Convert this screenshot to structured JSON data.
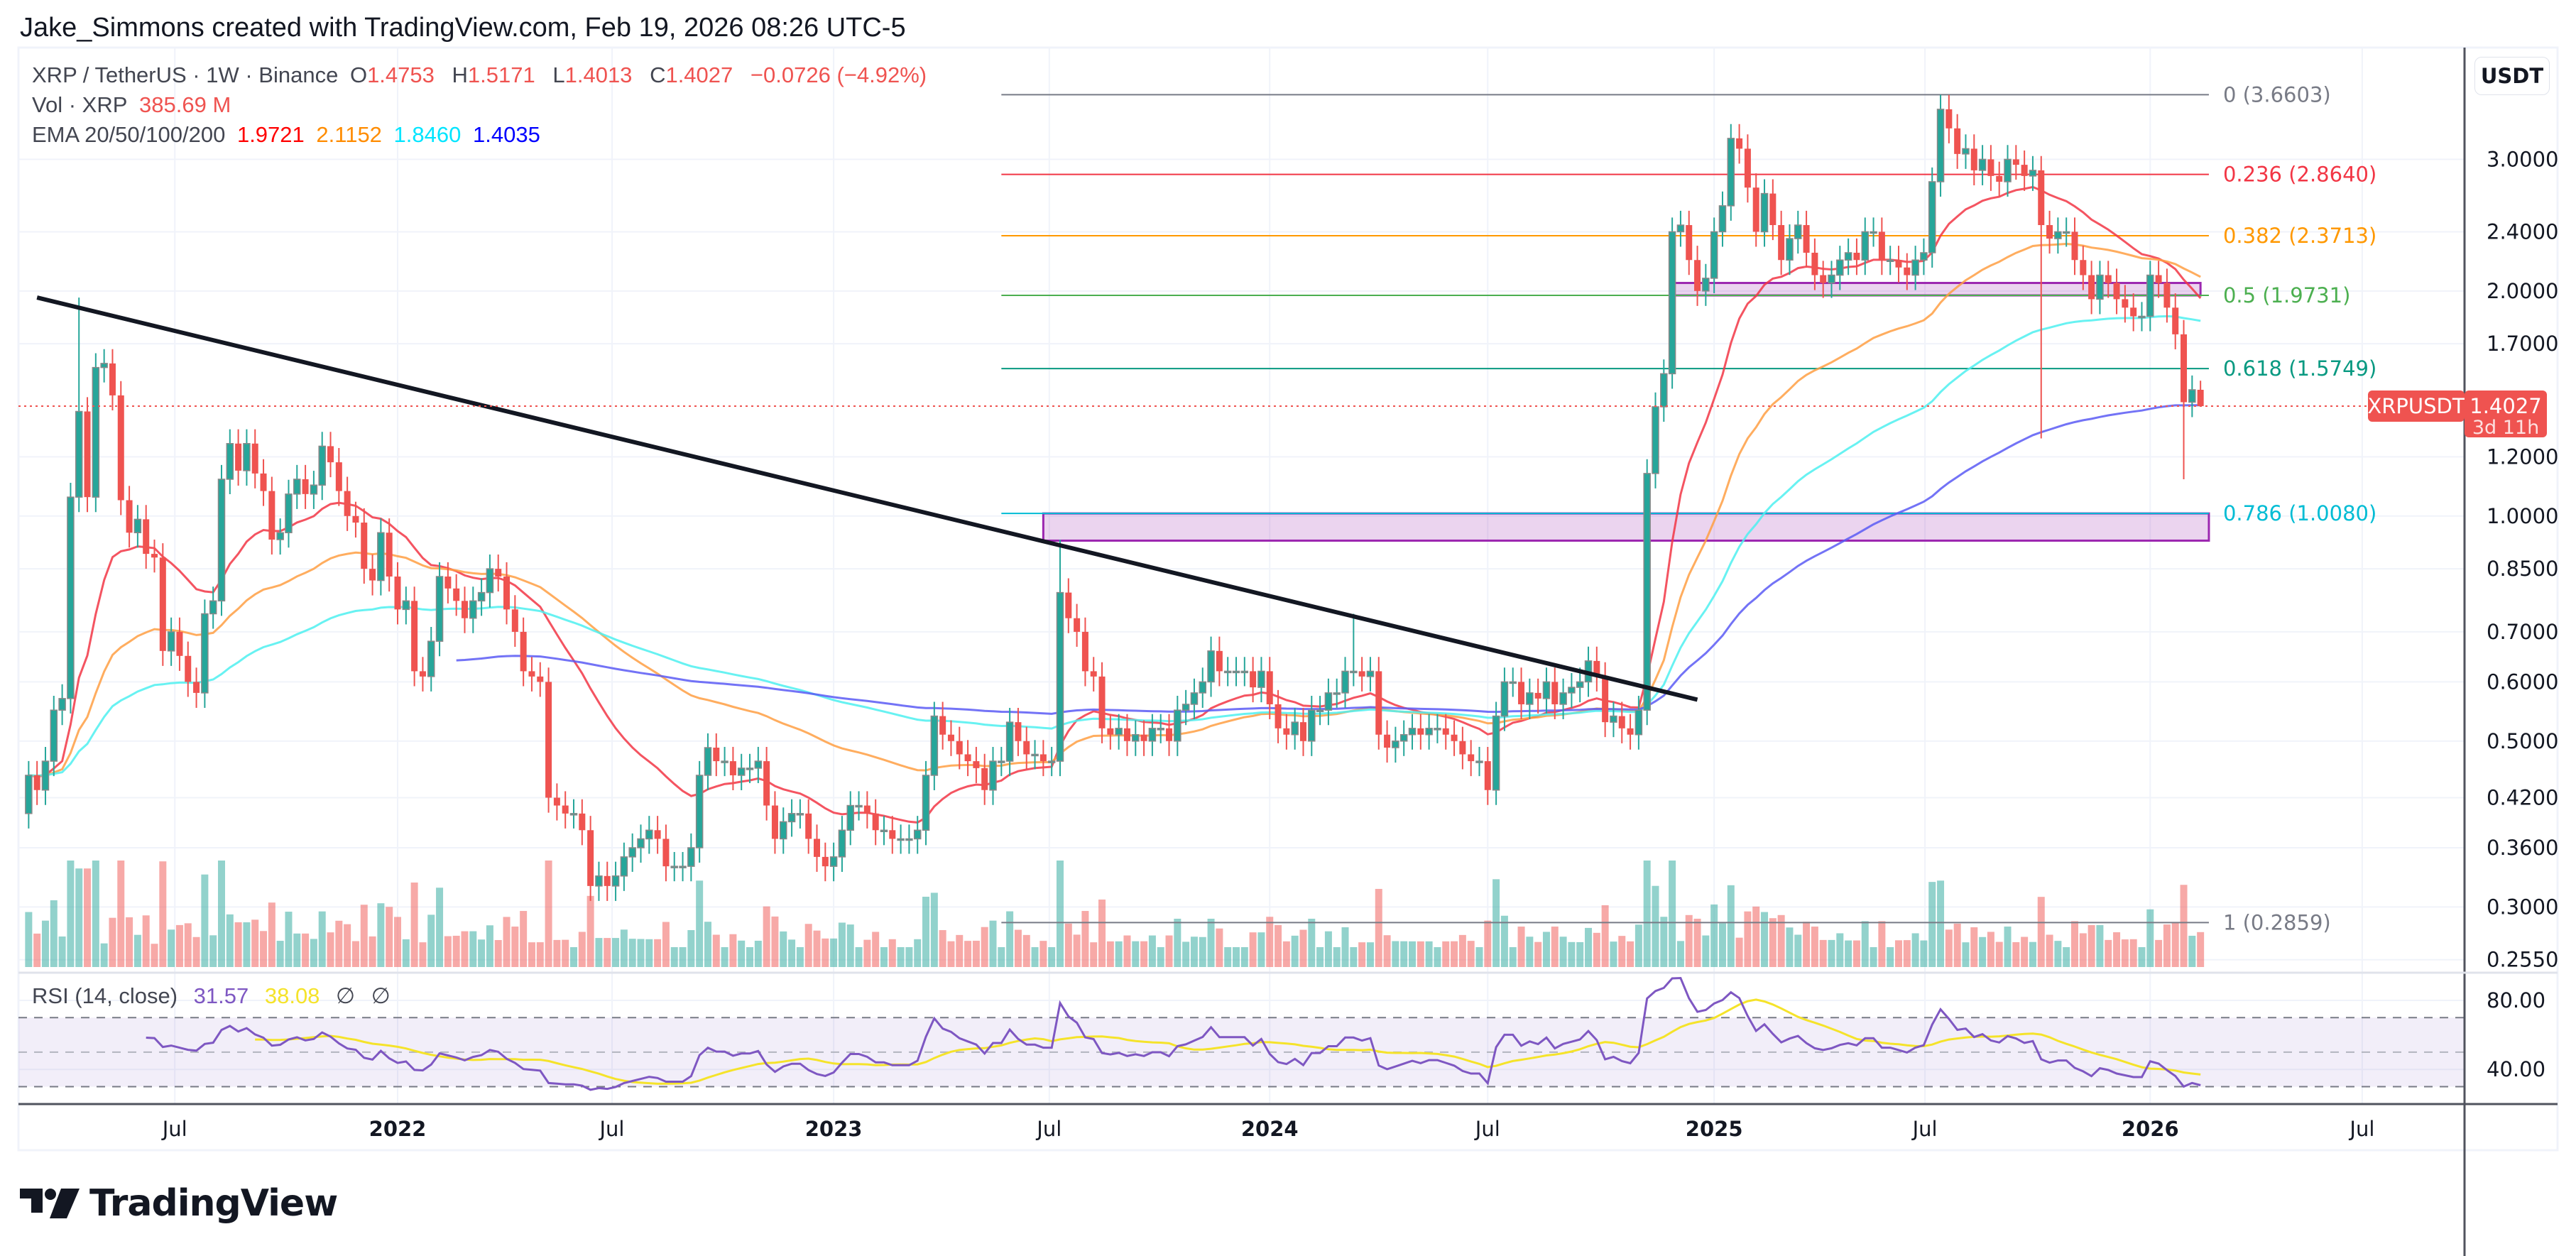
{
  "attribution": "Jake_Simmons created with TradingView.com, Feb 19, 2026 08:26 UTC-5",
  "legend": {
    "symbol": "XRP / TetherUS · 1W · Binance",
    "o_label": "O",
    "o": "1.4753",
    "h_label": "H",
    "h": "1.5171",
    "l_label": "L",
    "l": "1.4013",
    "c_label": "C",
    "c": "1.4027",
    "change": "−0.0726 (−4.92%)",
    "vol_label": "Vol · XRP",
    "vol": "385.69 M",
    "ema_label": "EMA 20/50/100/200",
    "ema20": "1.9721",
    "ema50": "2.1152",
    "ema100": "1.8460",
    "ema200": "1.4035"
  },
  "rsi_legend": {
    "label": "RSI (14, close)",
    "rsi": "31.57",
    "ma": "38.08",
    "na1": "∅",
    "na2": "∅"
  },
  "currency_button": "USDT",
  "price_tag": {
    "symbol": "XRPUSDT",
    "price": "1.4027",
    "countdown": "3d 11h"
  },
  "logo_text": "TradingView",
  "colors": {
    "up": "#26a69a",
    "down": "#ef5350",
    "ema20": "#f23645",
    "ema50": "#ff9f43",
    "ema100": "#4df0f0",
    "ema200": "#5b5bf5",
    "rsi": "#7e57c2",
    "rsi_ma": "#f5e32a",
    "trendline": "#131722",
    "zone": "#9c27b0"
  },
  "chart_data": {
    "type": "candlestick",
    "interval": "1W",
    "y_scale": "log",
    "grid": true,
    "first_week": "2021-03-01",
    "last_candle": {
      "open": 1.4753,
      "high": 1.5171,
      "low": 1.4013,
      "close": 1.4027
    },
    "closes": [
      0.45,
      0.43,
      0.47,
      0.55,
      0.57,
      1.06,
      1.38,
      1.06,
      1.58,
      1.6,
      1.45,
      1.05,
      0.95,
      0.99,
      0.89,
      0.88,
      0.66,
      0.7,
      0.65,
      0.6,
      0.58,
      0.74,
      0.77,
      1.12,
      1.25,
      1.15,
      1.25,
      1.14,
      1.08,
      0.93,
      0.95,
      1.07,
      1.12,
      1.07,
      1.1,
      1.24,
      1.18,
      1.08,
      1.0,
      0.98,
      0.85,
      0.82,
      0.95,
      0.83,
      0.75,
      0.77,
      0.62,
      0.61,
      0.68,
      0.83,
      0.8,
      0.77,
      0.73,
      0.77,
      0.79,
      0.85,
      0.83,
      0.75,
      0.7,
      0.62,
      0.61,
      0.6,
      0.42,
      0.41,
      0.4,
      0.4,
      0.38,
      0.32,
      0.33,
      0.32,
      0.33,
      0.35,
      0.36,
      0.37,
      0.38,
      0.37,
      0.34,
      0.34,
      0.34,
      0.36,
      0.45,
      0.49,
      0.47,
      0.47,
      0.45,
      0.46,
      0.46,
      0.47,
      0.41,
      0.37,
      0.39,
      0.4,
      0.4,
      0.37,
      0.35,
      0.34,
      0.35,
      0.38,
      0.41,
      0.41,
      0.4,
      0.38,
      0.38,
      0.37,
      0.37,
      0.37,
      0.38,
      0.45,
      0.54,
      0.51,
      0.5,
      0.48,
      0.47,
      0.46,
      0.43,
      0.47,
      0.47,
      0.53,
      0.5,
      0.48,
      0.48,
      0.47,
      0.47,
      0.79,
      0.73,
      0.7,
      0.62,
      0.61,
      0.52,
      0.51,
      0.52,
      0.5,
      0.51,
      0.5,
      0.52,
      0.52,
      0.5,
      0.55,
      0.56,
      0.58,
      0.6,
      0.66,
      0.62,
      0.62,
      0.62,
      0.62,
      0.59,
      0.62,
      0.56,
      0.52,
      0.51,
      0.53,
      0.5,
      0.55,
      0.55,
      0.58,
      0.58,
      0.62,
      0.62,
      0.61,
      0.62,
      0.51,
      0.49,
      0.5,
      0.51,
      0.52,
      0.51,
      0.52,
      0.52,
      0.51,
      0.5,
      0.48,
      0.47,
      0.47,
      0.43,
      0.54,
      0.6,
      0.6,
      0.56,
      0.58,
      0.57,
      0.6,
      0.56,
      0.58,
      0.59,
      0.6,
      0.64,
      0.61,
      0.53,
      0.54,
      0.52,
      0.51,
      0.55,
      1.14,
      1.4,
      1.55,
      2.4,
      2.45,
      2.2,
      2.0,
      2.08,
      2.4,
      2.6,
      3.2,
      3.1,
      2.75,
      2.4,
      2.7,
      2.45,
      2.2,
      2.35,
      2.45,
      2.25,
      2.1,
      2.05,
      2.1,
      2.2,
      2.25,
      2.2,
      2.4,
      2.4,
      2.2,
      2.2,
      2.15,
      2.1,
      2.2,
      2.25,
      2.8,
      3.5,
      3.3,
      3.05,
      3.1,
      2.9,
      3.0,
      2.85,
      2.8,
      3.0,
      2.95,
      2.85,
      2.9,
      2.45,
      2.35,
      2.4,
      2.4,
      2.2,
      2.1,
      1.95,
      2.1,
      2.05,
      1.95,
      1.9,
      1.85,
      1.85,
      2.1,
      2.05,
      1.9,
      1.75,
      1.42,
      1.4753,
      1.4027
    ],
    "notable_wicks": [
      {
        "week": "2021-04-12",
        "high": 1.96
      },
      {
        "week": "2023-07-10",
        "high": 0.93
      },
      {
        "week": "2024-03-11",
        "high": 0.74
      },
      {
        "week": "2025-07-14",
        "high": 3.66
      },
      {
        "week": "2025-10-06",
        "low": 1.27
      },
      {
        "week": "2026-02-02",
        "low": 1.12
      }
    ],
    "y_ticks": [
      "3.0000",
      "2.4000",
      "2.0000",
      "1.7000",
      "1.2000",
      "1.0000",
      "0.8500",
      "0.7000",
      "0.6000",
      "0.5000",
      "0.4200",
      "0.3600",
      "0.3000",
      "0.2550"
    ],
    "x_ticks": [
      {
        "label": "Jul",
        "date": "2021-07-01"
      },
      {
        "label": "2022",
        "date": "2022-01-03"
      },
      {
        "label": "Jul",
        "date": "2022-07-01"
      },
      {
        "label": "2023",
        "date": "2023-01-02"
      },
      {
        "label": "Jul",
        "date": "2023-07-01"
      },
      {
        "label": "2024",
        "date": "2024-01-01"
      },
      {
        "label": "Jul",
        "date": "2024-07-01"
      },
      {
        "label": "2025",
        "date": "2025-01-06"
      },
      {
        "label": "Jul",
        "date": "2025-07-01"
      },
      {
        "label": "2026",
        "date": "2026-01-05"
      },
      {
        "label": "Jul",
        "date": "2026-07-01"
      }
    ],
    "ema_periods": [
      20,
      50,
      100,
      200
    ],
    "rsi": {
      "period": 14,
      "ma_period": 14,
      "upper": 70,
      "middle": 50,
      "lower": 30,
      "ticks": [
        "80.00",
        "40.00"
      ]
    },
    "fib_levels": [
      {
        "ratio": "0",
        "price": 3.6603,
        "label": "0 (3.6603)",
        "color": "#787b86"
      },
      {
        "ratio": "0.236",
        "price": 2.864,
        "label": "0.236 (2.8640)",
        "color": "#f23645"
      },
      {
        "ratio": "0.382",
        "price": 2.3713,
        "label": "0.382 (2.3713)",
        "color": "#ff9800"
      },
      {
        "ratio": "0.5",
        "price": 1.9731,
        "label": "0.5 (1.9731)",
        "color": "#4caf50"
      },
      {
        "ratio": "0.618",
        "price": 1.5749,
        "label": "0.618 (1.5749)",
        "color": "#089981"
      },
      {
        "ratio": "0.786",
        "price": 1.008,
        "label": "0.786 (1.0080)",
        "color": "#00bcd4"
      },
      {
        "ratio": "1",
        "price": 0.2859,
        "label": "1 (0.2859)",
        "color": "#787b86"
      }
    ],
    "fib_start": "2023-05-22",
    "fib_end": "2026-02-23",
    "zones": [
      {
        "from": "2023-06-26",
        "to": "2026-02-23",
        "top": 1.008,
        "bottom": 0.927
      },
      {
        "from": "2024-12-02",
        "to": "2026-02-16",
        "top": 2.05,
        "bottom": 1.973
      }
    ],
    "trendline": {
      "from": {
        "date": "2021-03-08",
        "price": 1.96
      },
      "to": {
        "date": "2024-12-23",
        "price": 0.568
      }
    }
  }
}
